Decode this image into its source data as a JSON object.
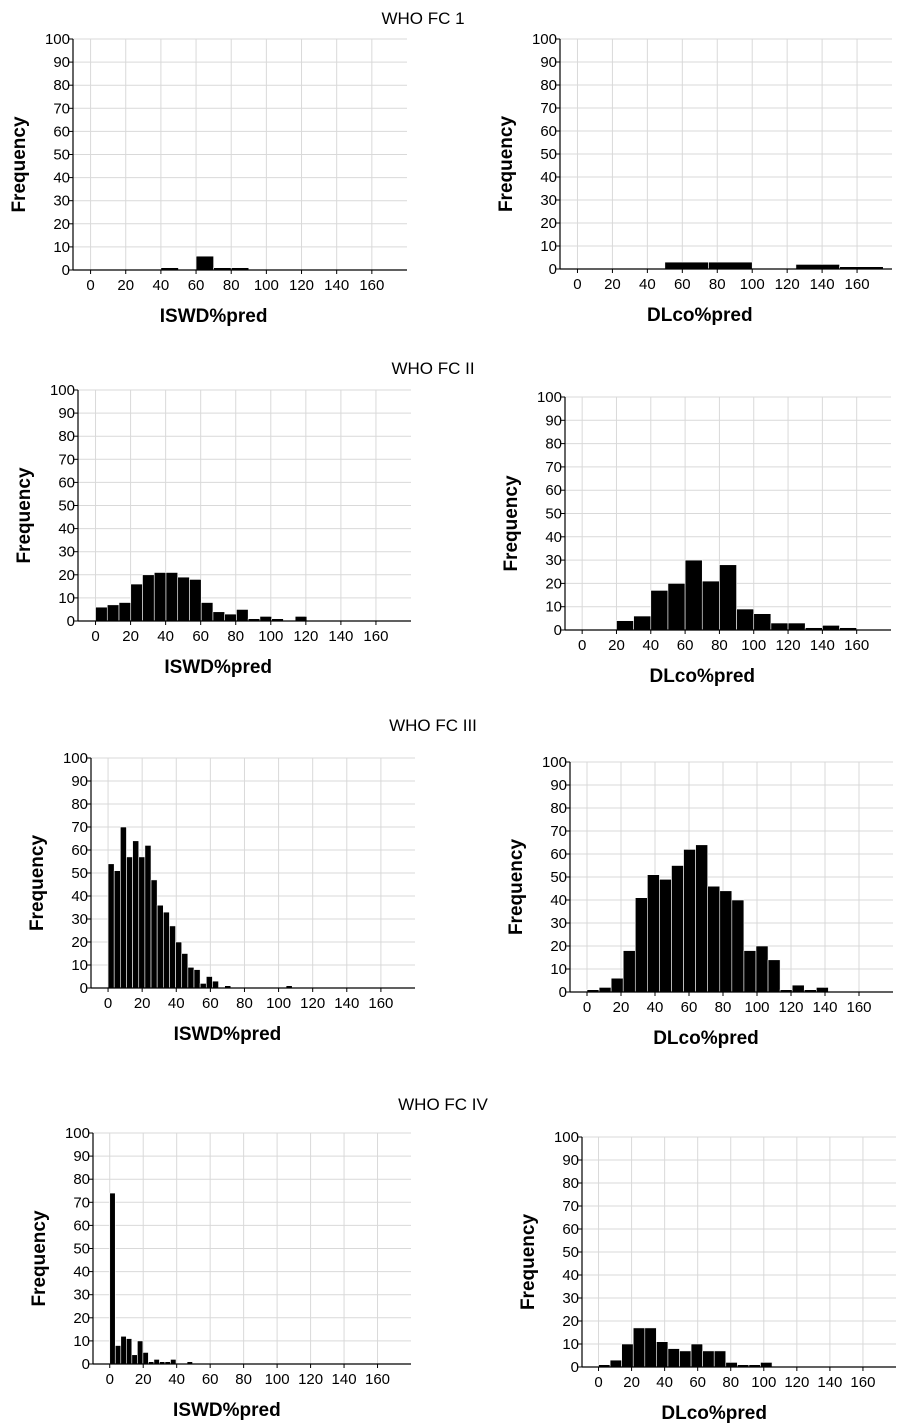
{
  "rows": [
    {
      "title": "WHO FC 1",
      "title_key": "rows.0.title"
    },
    {
      "title": "WHO FC II",
      "title_key": "rows.1.title"
    },
    {
      "title": "WHO FC III",
      "title_key": "rows.2.title"
    },
    {
      "title": "WHO FC IV",
      "title_key": "rows.3.title"
    }
  ],
  "chart_data": [
    {
      "type": "bar",
      "group": "WHO FC 1",
      "xlabel": "ISWD%pred",
      "ylabel": "Frequency",
      "xlim": [
        -10,
        180
      ],
      "ylim": [
        0,
        100
      ],
      "xticks": [
        0,
        20,
        40,
        60,
        80,
        100,
        120,
        140,
        160
      ],
      "yticks": [
        0,
        10,
        20,
        30,
        40,
        50,
        60,
        70,
        80,
        90,
        100
      ],
      "grid": true,
      "bins": [
        [
          40,
          50,
          1
        ],
        [
          60,
          70,
          6
        ],
        [
          70,
          80,
          1
        ],
        [
          80,
          90,
          1
        ]
      ]
    },
    {
      "type": "bar",
      "group": "WHO FC 1",
      "xlabel": "DLco%pred",
      "ylabel": "Frequency",
      "xlim": [
        -10,
        180
      ],
      "ylim": [
        0,
        100
      ],
      "xticks": [
        0,
        20,
        40,
        60,
        80,
        100,
        120,
        140,
        160
      ],
      "yticks": [
        0,
        10,
        20,
        30,
        40,
        50,
        60,
        70,
        80,
        90,
        100
      ],
      "grid": true,
      "bins": [
        [
          50,
          75,
          3
        ],
        [
          75,
          100,
          3
        ],
        [
          125,
          150,
          2
        ],
        [
          150,
          175,
          1
        ]
      ]
    },
    {
      "type": "bar",
      "group": "WHO FC II",
      "xlabel": "ISWD%pred",
      "ylabel": "Frequency",
      "xlim": [
        -10,
        180
      ],
      "ylim": [
        0,
        100
      ],
      "xticks": [
        0,
        20,
        40,
        60,
        80,
        100,
        120,
        140,
        160
      ],
      "yticks": [
        0,
        10,
        20,
        30,
        40,
        50,
        60,
        70,
        80,
        90,
        100
      ],
      "grid": true,
      "bins": [
        [
          0,
          6.7,
          6
        ],
        [
          6.7,
          13.4,
          7
        ],
        [
          13.4,
          20.1,
          8
        ],
        [
          20.1,
          26.8,
          16
        ],
        [
          26.8,
          33.5,
          20
        ],
        [
          33.5,
          40.2,
          21
        ],
        [
          40.2,
          46.9,
          21
        ],
        [
          46.9,
          53.6,
          19
        ],
        [
          53.6,
          60.3,
          18
        ],
        [
          60.3,
          67,
          8
        ],
        [
          67,
          73.7,
          4
        ],
        [
          73.7,
          80.4,
          3
        ],
        [
          80.4,
          87.1,
          5
        ],
        [
          87.1,
          93.8,
          1
        ],
        [
          93.8,
          100.5,
          2
        ],
        [
          100.5,
          107.2,
          1
        ],
        [
          113.9,
          120.6,
          2
        ]
      ]
    },
    {
      "type": "bar",
      "group": "WHO FC II",
      "xlabel": "DLco%pred",
      "ylabel": "Frequency",
      "xlim": [
        -10,
        180
      ],
      "ylim": [
        0,
        100
      ],
      "xticks": [
        0,
        20,
        40,
        60,
        80,
        100,
        120,
        140,
        160
      ],
      "yticks": [
        0,
        10,
        20,
        30,
        40,
        50,
        60,
        70,
        80,
        90,
        100
      ],
      "grid": true,
      "bins": [
        [
          20,
          30,
          4
        ],
        [
          30,
          40,
          6
        ],
        [
          40,
          50,
          17
        ],
        [
          50,
          60,
          20
        ],
        [
          60,
          70,
          30
        ],
        [
          70,
          80,
          21
        ],
        [
          80,
          90,
          28
        ],
        [
          90,
          100,
          9
        ],
        [
          100,
          110,
          7
        ],
        [
          110,
          120,
          3
        ],
        [
          120,
          130,
          3
        ],
        [
          130,
          140,
          1
        ],
        [
          140,
          150,
          2
        ],
        [
          150,
          160,
          1
        ]
      ]
    },
    {
      "type": "bar",
      "group": "WHO FC III",
      "xlabel": "ISWD%pred",
      "ylabel": "Frequency",
      "xlim": [
        -10,
        180
      ],
      "ylim": [
        0,
        100
      ],
      "xticks": [
        0,
        20,
        40,
        60,
        80,
        100,
        120,
        140,
        160
      ],
      "yticks": [
        0,
        10,
        20,
        30,
        40,
        50,
        60,
        70,
        80,
        90,
        100
      ],
      "grid": true,
      "bins": [
        [
          0,
          3.6,
          54
        ],
        [
          3.6,
          7.2,
          51
        ],
        [
          7.2,
          10.8,
          70
        ],
        [
          10.8,
          14.4,
          57
        ],
        [
          14.4,
          18,
          64
        ],
        [
          18,
          21.6,
          57
        ],
        [
          21.6,
          25.2,
          62
        ],
        [
          25.2,
          28.8,
          47
        ],
        [
          28.8,
          32.4,
          36
        ],
        [
          32.4,
          36,
          33
        ],
        [
          36,
          39.6,
          27
        ],
        [
          39.6,
          43.2,
          20
        ],
        [
          43.2,
          46.8,
          15
        ],
        [
          46.8,
          50.4,
          9
        ],
        [
          50.4,
          54,
          8
        ],
        [
          54,
          57.6,
          2
        ],
        [
          57.6,
          61.2,
          5
        ],
        [
          61.2,
          64.8,
          3
        ],
        [
          68.4,
          72,
          1
        ],
        [
          104.4,
          108,
          1
        ]
      ]
    },
    {
      "type": "bar",
      "group": "WHO FC III",
      "xlabel": "DLco%pred",
      "ylabel": "Frequency",
      "xlim": [
        -10,
        180
      ],
      "ylim": [
        0,
        100
      ],
      "xticks": [
        0,
        20,
        40,
        60,
        80,
        100,
        120,
        140,
        160
      ],
      "yticks": [
        0,
        10,
        20,
        30,
        40,
        50,
        60,
        70,
        80,
        90,
        100
      ],
      "grid": true,
      "bins": [
        [
          0,
          7.1,
          1
        ],
        [
          7.1,
          14.2,
          2
        ],
        [
          14.2,
          21.3,
          6
        ],
        [
          21.3,
          28.4,
          18
        ],
        [
          28.4,
          35.5,
          41
        ],
        [
          35.5,
          42.6,
          51
        ],
        [
          42.6,
          49.7,
          49
        ],
        [
          49.7,
          56.8,
          55
        ],
        [
          56.8,
          63.9,
          62
        ],
        [
          63.9,
          71,
          64
        ],
        [
          71,
          78.1,
          46
        ],
        [
          78.1,
          85.2,
          44
        ],
        [
          85.2,
          92.3,
          40
        ],
        [
          92.3,
          99.4,
          18
        ],
        [
          99.4,
          106.5,
          20
        ],
        [
          106.5,
          113.6,
          14
        ],
        [
          113.6,
          120.7,
          1
        ],
        [
          120.7,
          127.8,
          3
        ],
        [
          127.8,
          134.9,
          1
        ],
        [
          134.9,
          142,
          2
        ]
      ]
    },
    {
      "type": "bar",
      "group": "WHO FC IV",
      "xlabel": "ISWD%pred",
      "ylabel": "Frequency",
      "xlim": [
        -10,
        180
      ],
      "ylim": [
        0,
        100
      ],
      "xticks": [
        0,
        20,
        40,
        60,
        80,
        100,
        120,
        140,
        160
      ],
      "yticks": [
        0,
        10,
        20,
        30,
        40,
        50,
        60,
        70,
        80,
        90,
        100
      ],
      "grid": true,
      "bins": [
        [
          0,
          3.3,
          74
        ],
        [
          3.3,
          6.6,
          8
        ],
        [
          6.6,
          9.9,
          12
        ],
        [
          9.9,
          13.2,
          11
        ],
        [
          13.2,
          16.5,
          4
        ],
        [
          16.5,
          19.8,
          10
        ],
        [
          19.8,
          23.1,
          5
        ],
        [
          23.1,
          26.4,
          1
        ],
        [
          26.4,
          29.7,
          2
        ],
        [
          29.7,
          33,
          1
        ],
        [
          33,
          36.3,
          1
        ],
        [
          36.3,
          39.6,
          2
        ],
        [
          46.2,
          49.5,
          1
        ]
      ]
    },
    {
      "type": "bar",
      "group": "WHO FC IV",
      "xlabel": "DLco%pred",
      "ylabel": "Frequency",
      "xlim": [
        -10,
        180
      ],
      "ylim": [
        0,
        100
      ],
      "xticks": [
        0,
        20,
        40,
        60,
        80,
        100,
        120,
        140,
        160
      ],
      "yticks": [
        0,
        10,
        20,
        30,
        40,
        50,
        60,
        70,
        80,
        90,
        100
      ],
      "grid": true,
      "bins": [
        [
          0,
          7,
          1
        ],
        [
          7,
          14,
          3
        ],
        [
          14,
          21,
          10
        ],
        [
          21,
          28,
          17
        ],
        [
          28,
          35,
          17
        ],
        [
          35,
          42,
          11
        ],
        [
          42,
          49,
          8
        ],
        [
          49,
          56,
          7
        ],
        [
          56,
          63,
          10
        ],
        [
          63,
          70,
          7
        ],
        [
          70,
          77,
          7
        ],
        [
          77,
          84,
          2
        ],
        [
          84,
          91,
          1
        ],
        [
          91,
          98,
          1
        ],
        [
          98,
          105,
          2
        ]
      ]
    }
  ]
}
